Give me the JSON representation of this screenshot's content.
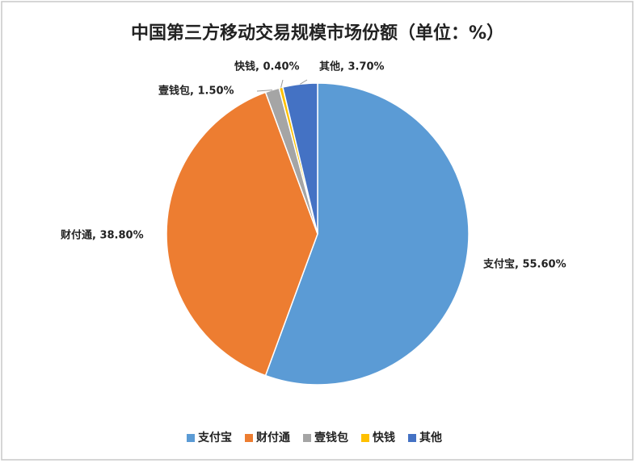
{
  "chart_data": {
    "type": "pie",
    "title": "中国第三方移动交易规模市场份额（单位：%）",
    "categories": [
      "支付宝",
      "财付通",
      "壹钱包",
      "快钱",
      "其他"
    ],
    "values": [
      55.6,
      38.8,
      1.5,
      0.4,
      3.7
    ],
    "value_labels": [
      "支付宝, 55.60%",
      "财付通, 38.80%",
      "壹钱包, 1.50%",
      "快钱, 0.40%",
      "其他, 3.70%"
    ],
    "colors": [
      "#5b9bd5",
      "#ed7d31",
      "#a5a5a5",
      "#ffc000",
      "#4472c4"
    ],
    "legend": "bottom"
  }
}
